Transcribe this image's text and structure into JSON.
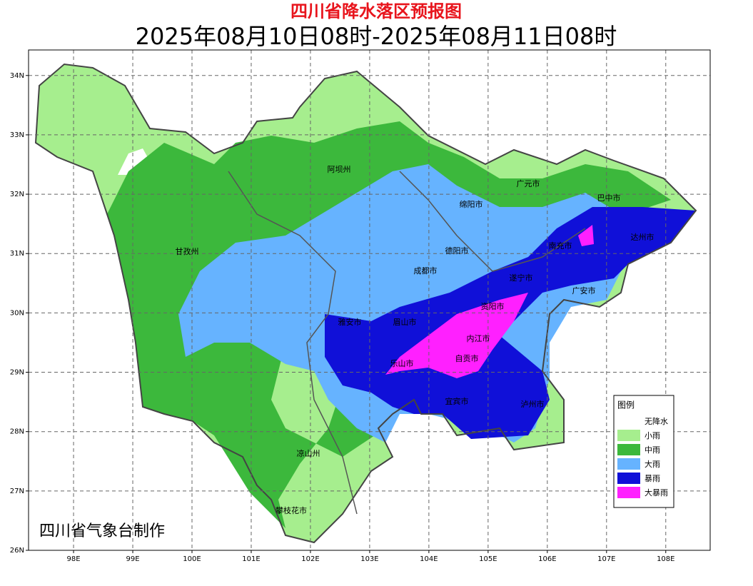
{
  "title": "四川省降水落区预报图",
  "subtitle": "2025年08月10日08时-2025年08月11日08时",
  "map": {
    "xticks": [
      {
        "value": 98,
        "label": "98E"
      },
      {
        "value": 99,
        "label": "99E"
      },
      {
        "value": 100,
        "label": "100E"
      },
      {
        "value": 101,
        "label": "101E"
      },
      {
        "value": 102,
        "label": "102E"
      },
      {
        "value": 103,
        "label": "103E"
      },
      {
        "value": 104,
        "label": "104E"
      },
      {
        "value": 105,
        "label": "105E"
      },
      {
        "value": 106,
        "label": "106E"
      },
      {
        "value": 107,
        "label": "107E"
      },
      {
        "value": 108,
        "label": "108E"
      }
    ],
    "yticks": [
      {
        "value": 26,
        "label": "26N"
      },
      {
        "value": 27,
        "label": "27N"
      },
      {
        "value": 28,
        "label": "28N"
      },
      {
        "value": 29,
        "label": "29N"
      },
      {
        "value": 30,
        "label": "30N"
      },
      {
        "value": 31,
        "label": "31N"
      },
      {
        "value": 32,
        "label": "32N"
      },
      {
        "value": 33,
        "label": "33N"
      },
      {
        "value": 34,
        "label": "34N"
      }
    ],
    "xlim": [
      97.24,
      108.75
    ],
    "ylim": [
      26,
      34.43
    ]
  },
  "cities": [
    "阿坝州",
    "广元市",
    "巴中市",
    "绵阳市",
    "甘孜州",
    "德阳市",
    "成都市",
    "达州市",
    "南充市",
    "遂宁市",
    "广安市",
    "资阳市",
    "雅安市",
    "眉山市",
    "内江市",
    "乐山市",
    "自贡市",
    "宜宾市",
    "泸州市",
    "凉山州",
    "攀枝花市"
  ],
  "legend": {
    "title": "图例",
    "items": [
      {
        "label": "无降水",
        "color": "#ffffff"
      },
      {
        "label": "小雨",
        "color": "#a6ee8e"
      },
      {
        "label": "中雨",
        "color": "#3cb83c"
      },
      {
        "label": "大雨",
        "color": "#66b3ff"
      },
      {
        "label": "暴雨",
        "color": "#1010d8"
      },
      {
        "label": "大暴雨",
        "color": "#ff20ff"
      }
    ]
  },
  "credit": "四川省气象台制作"
}
